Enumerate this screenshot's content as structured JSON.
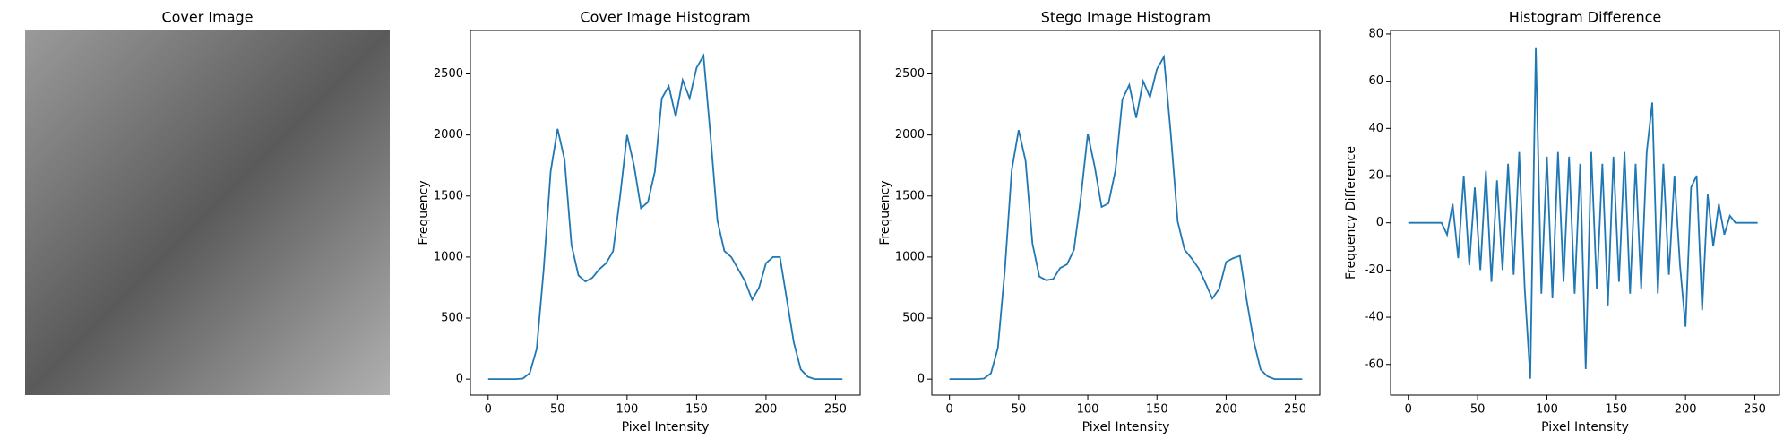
{
  "chart_data": [
    {
      "type": "image",
      "title": "Cover Image"
    },
    {
      "type": "line",
      "title": "Cover Image Histogram",
      "xlabel": "Pixel Intensity",
      "ylabel": "Frequency",
      "color": "#1f77b4",
      "x": [
        0,
        5,
        10,
        15,
        20,
        25,
        30,
        35,
        40,
        45,
        50,
        55,
        60,
        65,
        70,
        75,
        80,
        85,
        90,
        95,
        100,
        105,
        110,
        115,
        120,
        125,
        130,
        135,
        140,
        145,
        150,
        155,
        160,
        165,
        170,
        175,
        180,
        185,
        190,
        195,
        200,
        205,
        210,
        215,
        220,
        225,
        230,
        235,
        240,
        245,
        250,
        255
      ],
      "values": [
        0,
        0,
        0,
        0,
        0,
        5,
        50,
        250,
        900,
        1700,
        2050,
        1800,
        1100,
        850,
        800,
        830,
        900,
        950,
        1050,
        1500,
        2000,
        1750,
        1400,
        1450,
        1700,
        2300,
        2400,
        2150,
        2450,
        2300,
        2550,
        2650,
        2000,
        1300,
        1050,
        1000,
        900,
        800,
        650,
        750,
        950,
        1000,
        1000,
        650,
        300,
        80,
        20,
        0,
        0,
        0,
        0,
        0
      ],
      "xlim": [
        -12.75,
        267.75
      ],
      "ylim": [
        -131,
        2856
      ],
      "xticks": [
        0,
        50,
        100,
        150,
        200,
        250
      ],
      "yticks": [
        0,
        500,
        1000,
        1500,
        2000,
        2500
      ]
    },
    {
      "type": "line",
      "title": "Stego Image Histogram",
      "xlabel": "Pixel Intensity",
      "ylabel": "Frequency",
      "color": "#1f77b4",
      "x": [
        0,
        5,
        10,
        15,
        20,
        25,
        30,
        35,
        40,
        45,
        50,
        55,
        60,
        65,
        70,
        75,
        80,
        85,
        90,
        95,
        100,
        105,
        110,
        115,
        120,
        125,
        130,
        135,
        140,
        145,
        150,
        155,
        160,
        165,
        170,
        175,
        180,
        185,
        190,
        195,
        200,
        205,
        210,
        215,
        220,
        225,
        230,
        235,
        240,
        245,
        250,
        255
      ],
      "values": [
        0,
        0,
        0,
        0,
        0,
        5,
        48,
        255,
        890,
        1710,
        2040,
        1790,
        1110,
        840,
        810,
        820,
        910,
        940,
        1060,
        1490,
        2010,
        1740,
        1410,
        1440,
        1710,
        2290,
        2410,
        2140,
        2440,
        2310,
        2540,
        2640,
        2010,
        1290,
        1060,
        990,
        910,
        790,
        660,
        740,
        960,
        990,
        1010,
        640,
        310,
        78,
        22,
        0,
        0,
        0,
        0,
        0
      ],
      "xlim": [
        -12.75,
        267.75
      ],
      "ylim": [
        -131,
        2856
      ],
      "xticks": [
        0,
        50,
        100,
        150,
        200,
        250
      ],
      "yticks": [
        0,
        500,
        1000,
        1500,
        2000,
        2500
      ]
    },
    {
      "type": "line",
      "title": "Histogram Difference",
      "xlabel": "Pixel Intensity",
      "ylabel": "Frequency Difference",
      "color": "#1f77b4",
      "x": [
        0,
        4,
        8,
        12,
        16,
        20,
        24,
        28,
        32,
        36,
        40,
        44,
        48,
        52,
        56,
        60,
        64,
        68,
        72,
        76,
        80,
        84,
        88,
        92,
        96,
        100,
        104,
        108,
        112,
        116,
        120,
        124,
        128,
        132,
        136,
        140,
        144,
        148,
        152,
        156,
        160,
        164,
        168,
        172,
        176,
        180,
        184,
        188,
        192,
        196,
        200,
        204,
        208,
        212,
        216,
        220,
        224,
        228,
        232,
        236,
        240,
        244,
        248,
        252
      ],
      "values": [
        0,
        0,
        0,
        0,
        0,
        0,
        0,
        -5,
        8,
        -15,
        20,
        -18,
        15,
        -20,
        22,
        -25,
        18,
        -20,
        25,
        -22,
        30,
        -28,
        -66,
        74,
        -30,
        28,
        -32,
        30,
        -25,
        28,
        -30,
        25,
        -62,
        30,
        -28,
        25,
        -35,
        28,
        -25,
        30,
        -30,
        25,
        -28,
        30,
        51,
        -30,
        25,
        -22,
        20,
        -18,
        -44,
        15,
        20,
        -37,
        12,
        -10,
        8,
        -5,
        3,
        0,
        0,
        0,
        0,
        0
      ],
      "xlim": [
        -12.75,
        267.75
      ],
      "ylim": [
        -73,
        81.5
      ],
      "xticks": [
        0,
        50,
        100,
        150,
        200,
        250
      ],
      "yticks": [
        -60,
        -40,
        -20,
        0,
        20,
        40,
        60,
        80
      ]
    }
  ]
}
